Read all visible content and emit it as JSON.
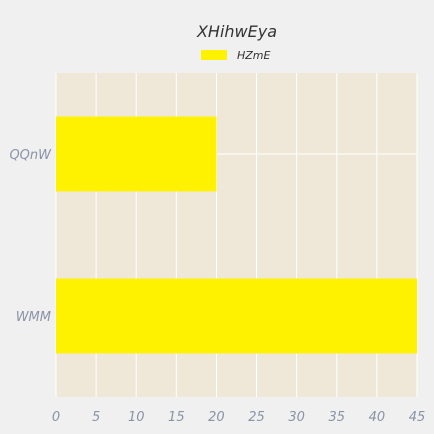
{
  "chart_data": {
    "type": "bar",
    "orientation": "horizontal",
    "title": "XHihwEya",
    "xlabel": "",
    "ylabel": "",
    "categories": [
      "QQnW",
      "WMM"
    ],
    "series": [
      {
        "name": "HZmE",
        "values": [
          20,
          45
        ],
        "color": "#fff200"
      }
    ],
    "xlim": [
      0,
      45
    ],
    "xticks": [
      0,
      5,
      10,
      15,
      20,
      25,
      30,
      35,
      40,
      45
    ],
    "grid": true,
    "legend_position": "top-center",
    "colors": {
      "background": "#f0f0f0",
      "plot_background": "#efe8d8",
      "grid": "#ffffff",
      "tick_text": "#8a94a6",
      "title_text": "#333333"
    }
  }
}
